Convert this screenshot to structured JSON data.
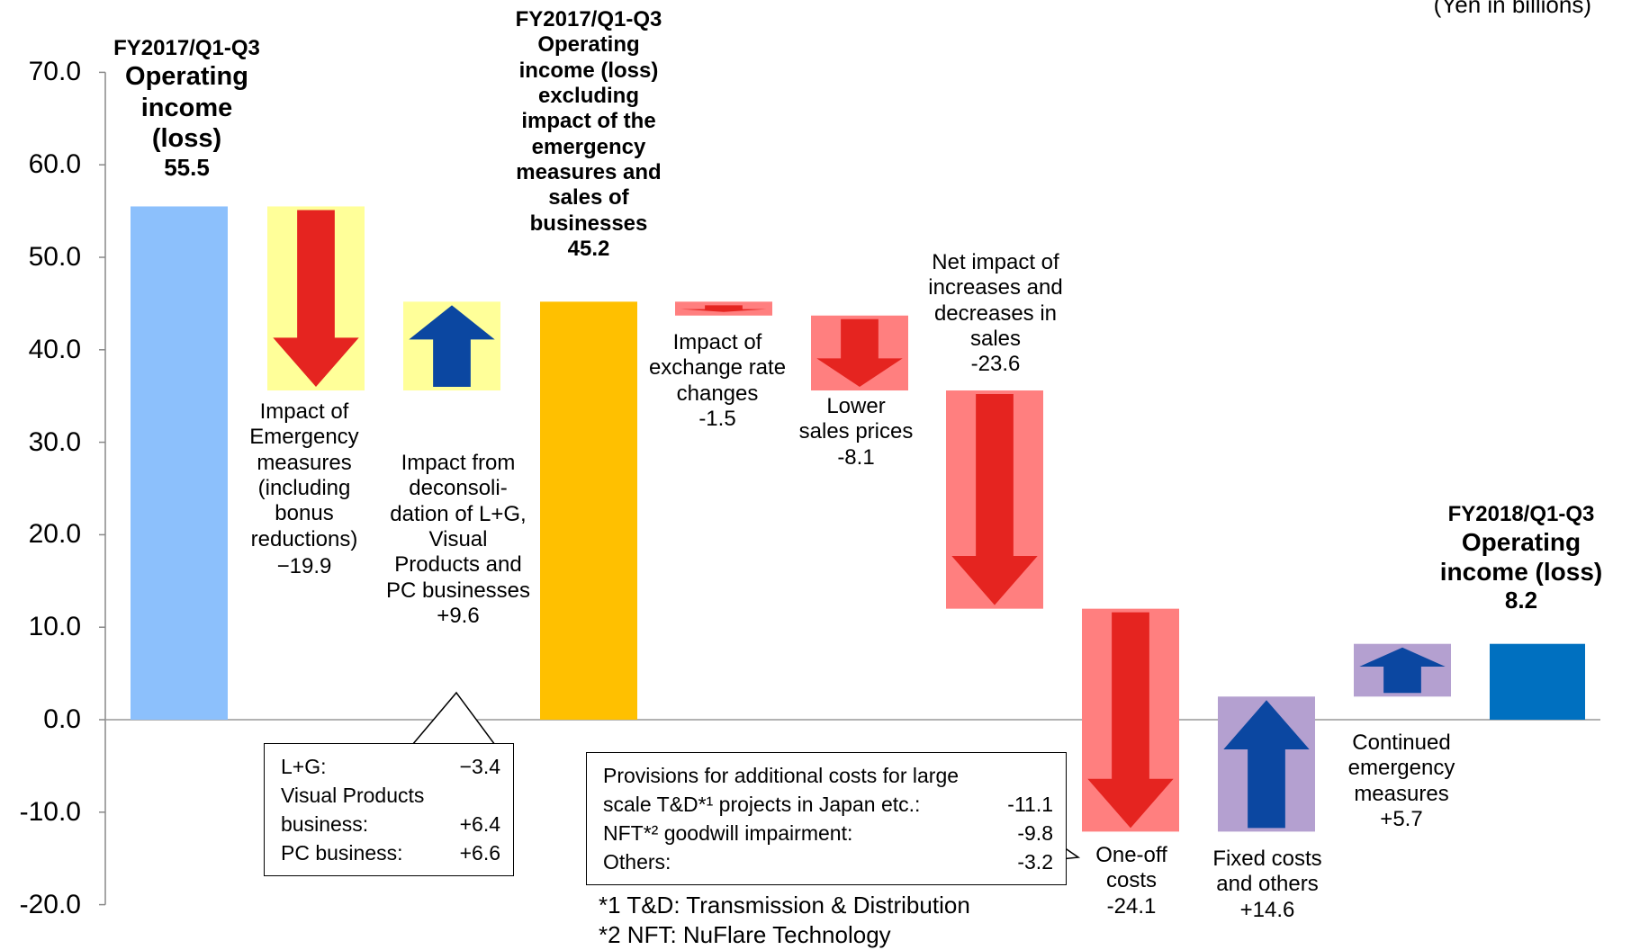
{
  "unit_label": "(Yen in billions)",
  "chart_data": {
    "type": "bar",
    "variant": "waterfall",
    "yaxis": {
      "ylim": [
        -20,
        70
      ],
      "ticks": [
        "70.0",
        "60.0",
        "50.0",
        "40.0",
        "30.0",
        "20.0",
        "10.0",
        "0.0",
        "-10.0",
        "-20.0"
      ],
      "tick_values": [
        70,
        60,
        50,
        40,
        30,
        20,
        10,
        0,
        -10,
        -20
      ]
    },
    "bars": [
      {
        "key": "fy2017",
        "kind": "total",
        "start": 0,
        "end": 55.5,
        "color": "#8cc0fc",
        "label": "FY2017/Q1-Q3\nOperating\nincome\n(loss)",
        "value_label": "55.5"
      },
      {
        "key": "emergency",
        "kind": "delta",
        "start": 55.5,
        "end": 35.6,
        "color": "#ffff99",
        "arrow": "down",
        "arrow_color": "#e52420",
        "label": "Impact of\nEmergency\nmeasures\n(including\nbonus\nreductions)",
        "value_label": "−19.9"
      },
      {
        "key": "deconsolidation",
        "kind": "delta",
        "start": 35.6,
        "end": 45.2,
        "color": "#ffff99",
        "arrow": "up",
        "arrow_color": "#0b47a1",
        "label": "Impact from\ndeconsoli-\ndation of L+G,\nVisual\nProducts and\nPC businesses",
        "value_label": "+9.6"
      },
      {
        "key": "fy2017_excl",
        "kind": "total",
        "start": 0,
        "end": 45.2,
        "color": "#ffc000",
        "label": "FY2017/Q1-Q3\nOperating\nincome (loss)\nexcluding\nimpact of the\nemergency\nmeasures and\nsales of\nbusinesses",
        "value_label": "45.2"
      },
      {
        "key": "fx",
        "kind": "delta",
        "start": 45.2,
        "end": 43.7,
        "color": "#ff7f7f",
        "arrow": "down",
        "arrow_color": "#e52420",
        "label": "Impact of\nexchange rate\nchanges",
        "value_label": "-1.5"
      },
      {
        "key": "prices",
        "kind": "delta",
        "start": 43.7,
        "end": 35.6,
        "color": "#ff7f7f",
        "arrow": "down",
        "arrow_color": "#e52420",
        "label": "Lower\nsales prices",
        "value_label": "-8.1"
      },
      {
        "key": "sales",
        "kind": "delta",
        "start": 35.6,
        "end": 12.0,
        "color": "#ff7f7f",
        "arrow": "down",
        "arrow_color": "#e52420",
        "label": "Net impact of\nincreases and\ndecreases in\nsales",
        "value_label": "-23.6"
      },
      {
        "key": "oneoff",
        "kind": "delta",
        "start": 12.0,
        "end": -12.1,
        "color": "#ff7f7f",
        "arrow": "down",
        "arrow_color": "#e52420",
        "label": "One-off\ncosts",
        "value_label": "-24.1"
      },
      {
        "key": "fixed",
        "kind": "delta",
        "start": -12.1,
        "end": 2.5,
        "color": "#b4a0d0",
        "arrow": "up",
        "arrow_color": "#0b47a1",
        "label": "Fixed costs\nand others",
        "value_label": "+14.6"
      },
      {
        "key": "continued",
        "kind": "delta",
        "start": 2.5,
        "end": 8.2,
        "color": "#b4a0d0",
        "arrow": "up",
        "arrow_color": "#0b47a1",
        "label": "Continued\nemergency\nmeasures",
        "value_label": "+5.7"
      },
      {
        "key": "fy2018",
        "kind": "total",
        "start": 0,
        "end": 8.2,
        "color": "#0070c0",
        "label": "FY2018/Q1-Q3\nOperating\nincome (loss)",
        "value_label": "8.2"
      }
    ]
  },
  "callout_deconsolidation": {
    "rows": [
      {
        "name": "L+G:",
        "value": "−3.4"
      },
      {
        "name": "Visual Products",
        "value": ""
      },
      {
        "name": "business:",
        "value": "+6.4"
      },
      {
        "name": "PC business:",
        "value": "+6.6"
      }
    ]
  },
  "callout_oneoff": {
    "rows": [
      {
        "name": "Provisions for additional costs for large",
        "value": ""
      },
      {
        "name": "scale T&D*¹ projects in Japan etc.:",
        "value": "-11.1"
      },
      {
        "name": "NFT*² goodwill impairment:",
        "value": "-9.8"
      },
      {
        "name": "Others:",
        "value": "-3.2"
      }
    ]
  },
  "footnotes": [
    "*1 T&D: Transmission & Distribution",
    "*2 NFT: NuFlare Technology"
  ]
}
